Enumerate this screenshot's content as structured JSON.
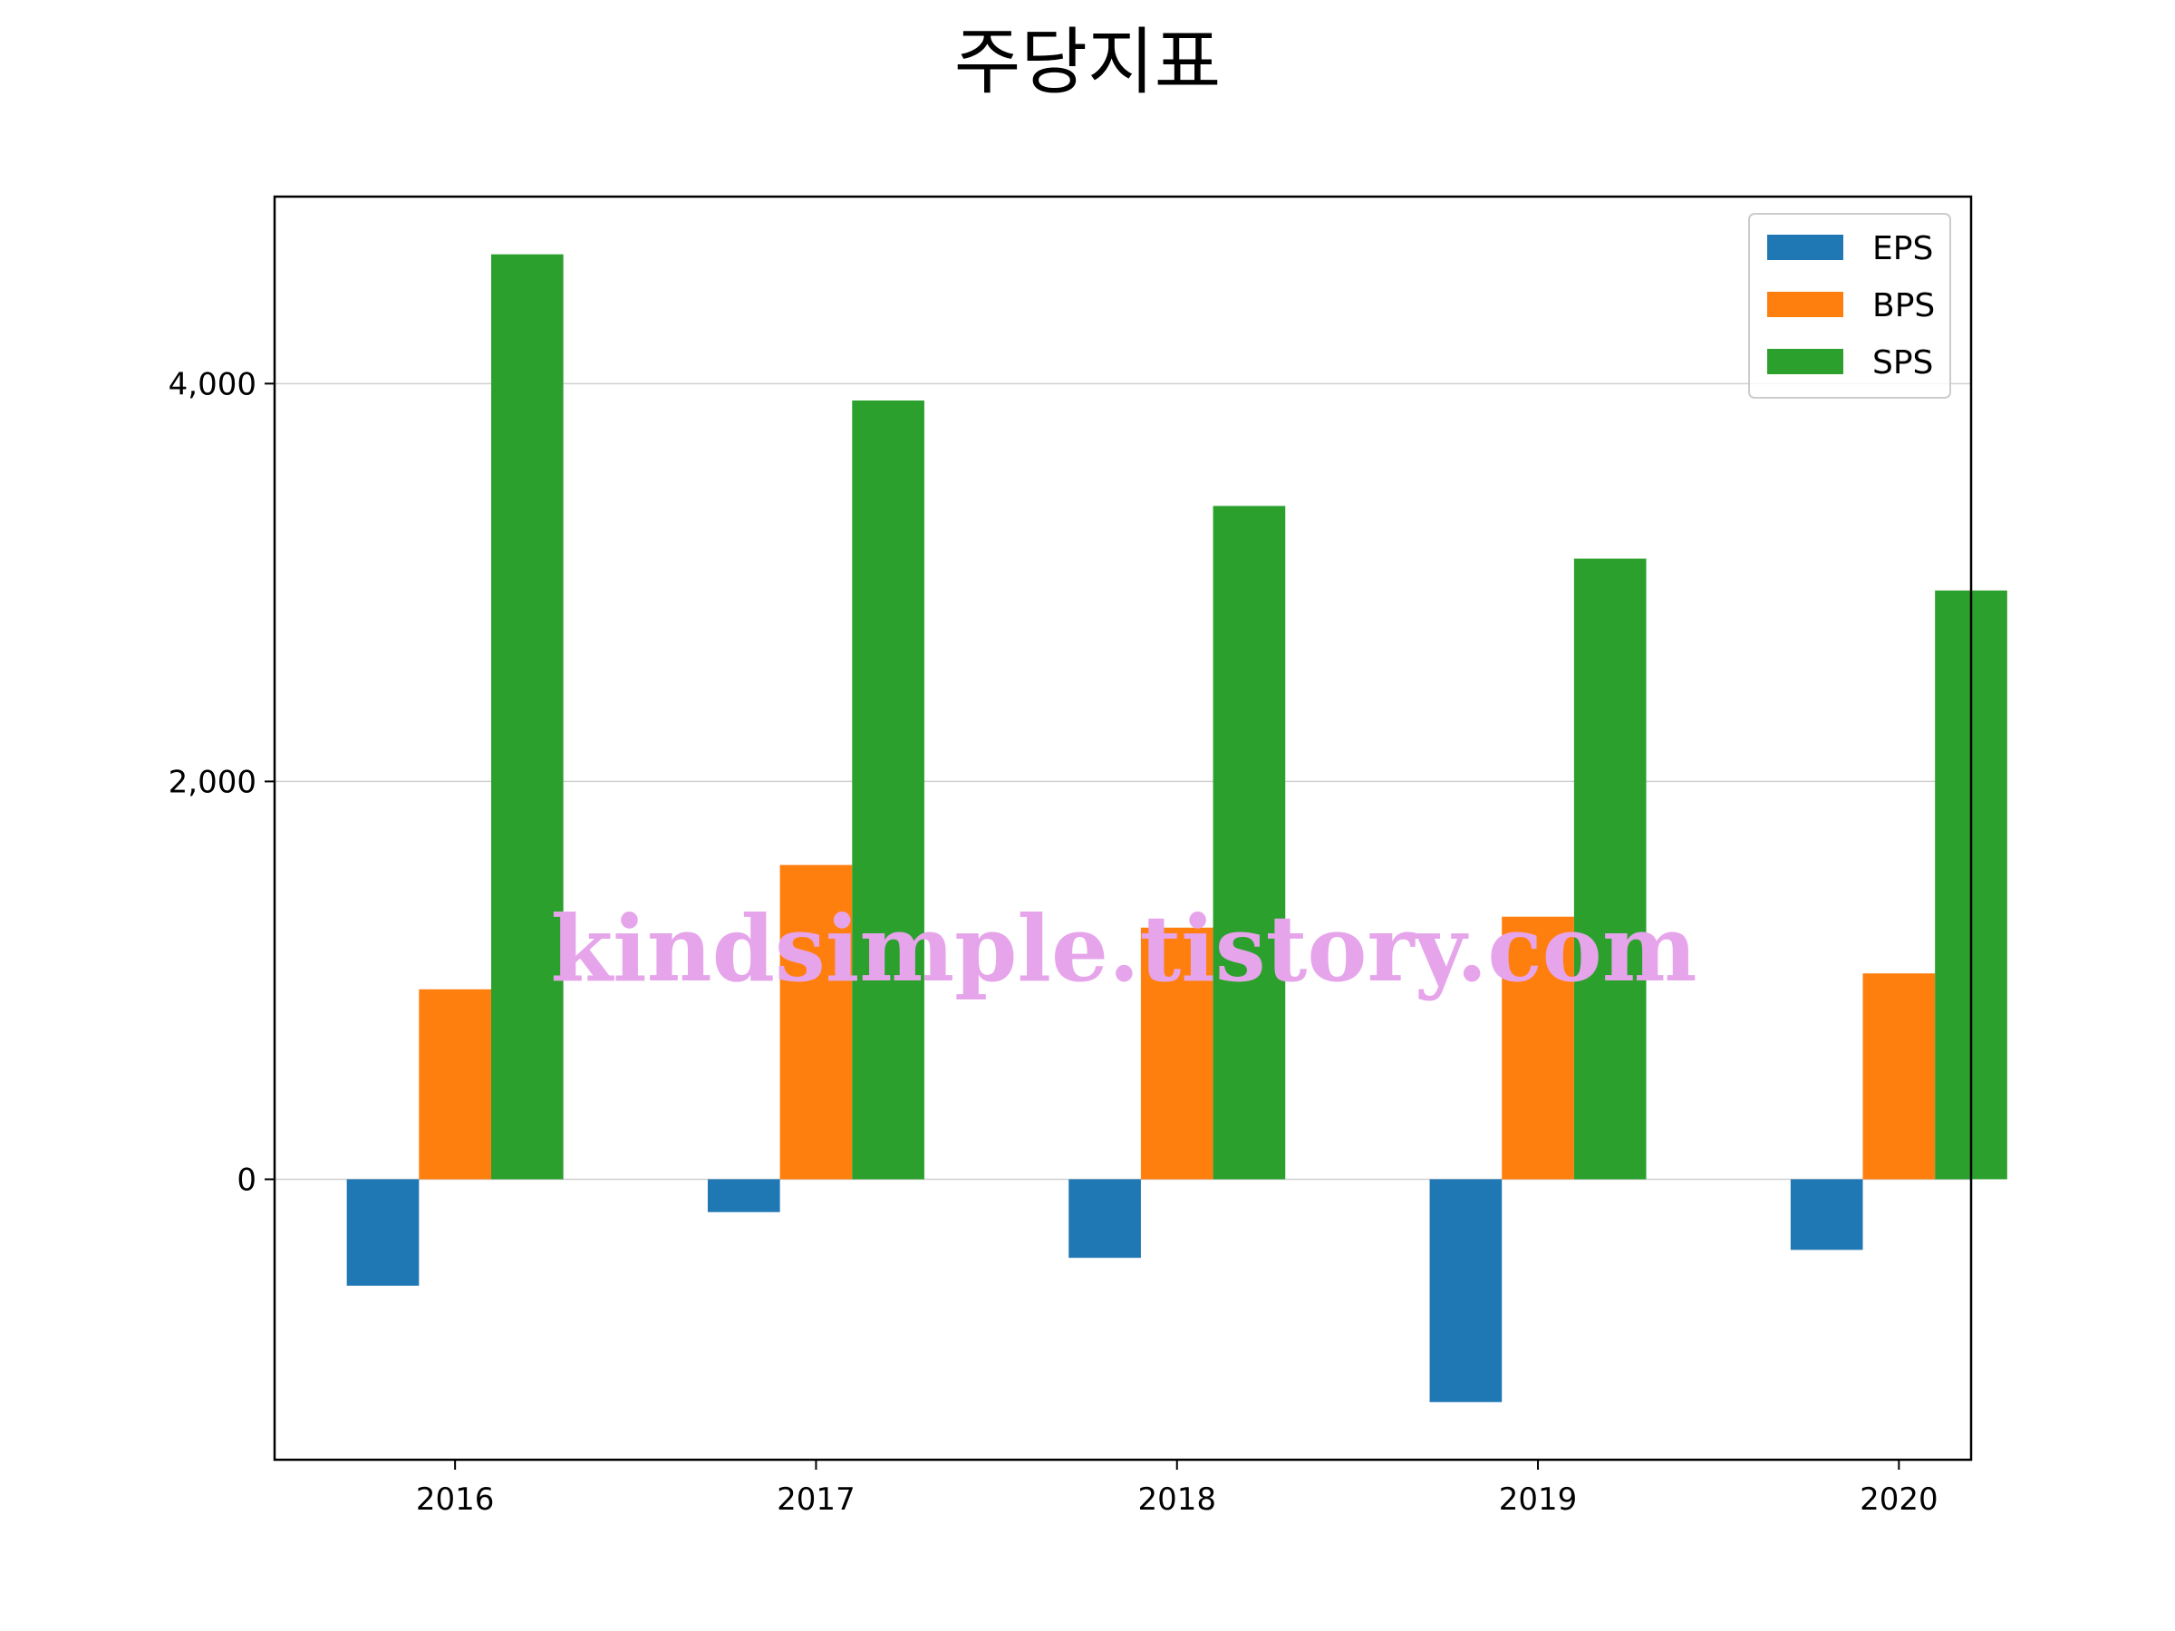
{
  "chart_data": {
    "type": "bar",
    "title": "주당지표",
    "xlabel": "",
    "ylabel": "",
    "categories": [
      "2016",
      "2017",
      "2018",
      "2019",
      "2020"
    ],
    "series": [
      {
        "name": "EPS",
        "color": "#1f77b4",
        "values": [
          -535,
          -165,
          -395,
          -1120,
          -355
        ]
      },
      {
        "name": "BPS",
        "color": "#ff7f0e",
        "values": [
          955,
          1580,
          1265,
          1320,
          1035
        ]
      },
      {
        "name": "SPS",
        "color": "#2ca02c",
        "values": [
          4650,
          3915,
          3385,
          3120,
          2960
        ]
      }
    ],
    "ylim": [
      -1410,
      4940
    ],
    "yticks": [
      0,
      2000,
      4000
    ],
    "ytick_labels": [
      "0",
      "2,000",
      "4,000"
    ],
    "grid": "y",
    "legend_position": "top-right",
    "watermark": "kindsimple.tistory.com"
  }
}
